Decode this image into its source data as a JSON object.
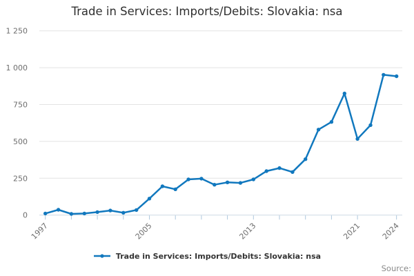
{
  "title": "Trade in Services: Imports/Debits: Slovakia: nsa",
  "legend": {
    "label": "Trade in Services: Imports/Debits: Slovakia: nsa"
  },
  "source_label": "Source:",
  "colors": {
    "line": "#1178be",
    "grid": "#e3e3e3",
    "axis_line": "#cdd9e4",
    "tick": "#aec7dd",
    "muted_text": "#6e6e6e",
    "title_text": "#2f2f2f"
  },
  "chart_data": {
    "type": "line",
    "title": "Trade in Services: Imports/Debits: Slovakia: nsa",
    "xlabel": "",
    "ylabel": "",
    "ylim": [
      0,
      1250
    ],
    "grid": "horizontal",
    "legend_position": "bottom",
    "yticks": [
      0,
      250,
      500,
      750,
      1000,
      1250
    ],
    "ytick_labels": [
      "0",
      "250",
      "500",
      "750",
      "1 000",
      "1 250"
    ],
    "xticks": [
      1997,
      1999,
      2001,
      2003,
      2005,
      2007,
      2009,
      2011,
      2013,
      2015,
      2017,
      2019,
      2021,
      2024
    ],
    "xtick_label_years": [
      1997,
      2005,
      2013,
      2021,
      2024
    ],
    "xtick_labels": [
      "1997",
      "2005",
      "2013",
      "2021",
      "2024"
    ],
    "series": [
      {
        "name": "Trade in Services: Imports/Debits: Slovakia: nsa",
        "color": "#1178be",
        "x": [
          1997,
          1998,
          1999,
          2000,
          2001,
          2002,
          2003,
          2004,
          2005,
          2006,
          2007,
          2008,
          2009,
          2010,
          2011,
          2012,
          2013,
          2014,
          2015,
          2016,
          2017,
          2018,
          2019,
          2020,
          2021,
          2022,
          2023,
          2024
        ],
        "values": [
          11,
          36,
          8,
          11,
          20,
          31,
          16,
          34,
          112,
          195,
          175,
          242,
          247,
          206,
          222,
          218,
          242,
          298,
          319,
          292,
          379,
          580,
          632,
          825,
          517,
          610,
          952,
          942
        ]
      }
    ]
  }
}
